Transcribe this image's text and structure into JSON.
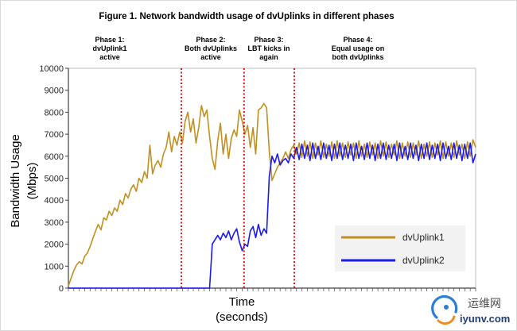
{
  "chart_data": {
    "type": "line",
    "title": "Figure 1. Network bandwidth usage of dvUplinks in different phases",
    "xlabel": [
      "Time",
      "(seconds)"
    ],
    "ylabel": [
      "Bandwidth Usage",
      "(Mbps)"
    ],
    "xlim": [
      0,
      150
    ],
    "ylim": [
      0,
      10000
    ],
    "yticks": [
      0,
      1000,
      2000,
      3000,
      4000,
      5000,
      6000,
      7000,
      8000,
      9000,
      10000
    ],
    "grid": false,
    "legend_position": "bottom-right",
    "x_start": 0,
    "x_step": 1,
    "phase_boundaries": [
      41.6,
      64.7,
      83.2
    ],
    "boundary_color": "#E00000",
    "phases": [
      {
        "label": [
          "Phase 1:",
          "dvUplink1",
          "active"
        ]
      },
      {
        "label": [
          "Phase 2:",
          "Both dvUplinks",
          "active"
        ]
      },
      {
        "label": [
          "Phase 3:",
          "LBT kicks in",
          "again"
        ]
      },
      {
        "label": [
          "Phase 4:",
          "Equal usage on",
          "both dvUplinks"
        ]
      }
    ],
    "series": [
      {
        "name": "dvUplink1",
        "color": "#C09020",
        "values": [
          100,
          450,
          800,
          1050,
          1200,
          1100,
          1450,
          1600,
          1900,
          2250,
          2600,
          2900,
          2650,
          3200,
          3100,
          3500,
          3300,
          3650,
          3500,
          4000,
          3800,
          4300,
          4100,
          4500,
          4700,
          4400,
          5000,
          4800,
          5300,
          5000,
          6500,
          5200,
          5600,
          5800,
          5500,
          6100,
          6400,
          7100,
          6200,
          6900,
          6500,
          7100,
          6600,
          7600,
          8000,
          7100,
          7700,
          6600,
          7300,
          8300,
          7800,
          8100,
          6900,
          5900,
          5400,
          6700,
          7500,
          6100,
          7000,
          5900,
          6800,
          7200,
          6900,
          8100,
          7600,
          7000,
          7400,
          6400,
          7300,
          6100,
          8100,
          8200,
          8400,
          8200,
          6200,
          4900,
          5200,
          5500,
          5700,
          5900,
          6200,
          5900,
          6300,
          6500,
          6100,
          6600,
          5950,
          6700,
          6000,
          6650,
          5900,
          6600,
          6050,
          6700,
          5950,
          6550,
          6000,
          6650,
          5900,
          6700,
          6000,
          6600,
          5950,
          6650,
          6050,
          6600,
          5900,
          6700,
          6000,
          6550,
          5950,
          6650,
          6050,
          6600,
          5900,
          6700,
          6000,
          6650,
          5950,
          6550,
          6050,
          6700,
          5900,
          6600,
          6000,
          6650,
          5950,
          6600,
          6050,
          6700,
          5900,
          6550,
          6000,
          6650,
          5950,
          6600,
          6050,
          6700,
          5900,
          6650,
          6000,
          6600,
          5950,
          6700,
          6050,
          6550,
          5900,
          6650,
          6000,
          6750,
          6400
        ]
      },
      {
        "name": "dvUplink2",
        "color": "#1A1AF0",
        "values": [
          0,
          0,
          0,
          0,
          0,
          0,
          0,
          0,
          0,
          0,
          0,
          0,
          0,
          0,
          0,
          0,
          0,
          0,
          0,
          0,
          0,
          0,
          0,
          0,
          0,
          0,
          0,
          0,
          0,
          0,
          0,
          0,
          0,
          0,
          0,
          0,
          0,
          0,
          0,
          0,
          0,
          0,
          0,
          0,
          0,
          0,
          0,
          0,
          0,
          0,
          0,
          0,
          0,
          2000,
          2200,
          2400,
          2200,
          2500,
          2300,
          2600,
          2200,
          2500,
          2700,
          2100,
          1700,
          2000,
          1900,
          2600,
          2800,
          2300,
          2900,
          2400,
          2700,
          2500,
          5100,
          6000,
          5700,
          6100,
          5600,
          5800,
          5900,
          5700,
          6100,
          5900,
          6400,
          5850,
          6550,
          5900,
          6500,
          5800,
          6600,
          5900,
          6450,
          5850,
          6600,
          5900,
          6500,
          5800,
          6550,
          5900,
          6600,
          5850,
          6500,
          5900,
          6550,
          5800,
          6600,
          5900,
          6450,
          5850,
          6600,
          5900,
          6500,
          5800,
          6550,
          5900,
          6600,
          5850,
          6500,
          5900,
          6550,
          5800,
          6600,
          5900,
          6450,
          5850,
          6600,
          5900,
          6500,
          5800,
          6550,
          5900,
          6600,
          5850,
          6500,
          5900,
          6550,
          5800,
          6600,
          5900,
          6450,
          5850,
          6600,
          5900,
          6500,
          5800,
          6550,
          5900,
          6600,
          5700,
          6100
        ]
      }
    ]
  },
  "watermark": {
    "site_name": "运维网",
    "domain": "iyunv.com",
    "logo_colors": [
      "#2A7FD4",
      "#F08A1C"
    ]
  }
}
